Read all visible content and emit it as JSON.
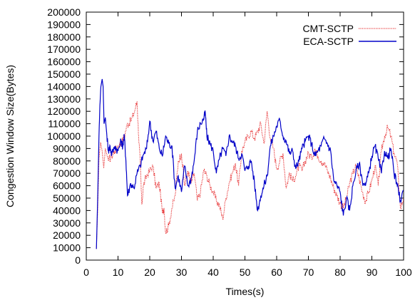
{
  "chart_data": {
    "type": "line",
    "title": "",
    "xlabel": "Times(s)",
    "ylabel": "Congestion Window Size(Bytes)",
    "xlim": [
      0,
      100
    ],
    "ylim": [
      0,
      200000
    ],
    "xticks": [
      0,
      10,
      20,
      30,
      40,
      50,
      60,
      70,
      80,
      90,
      100
    ],
    "yticks": [
      0,
      10000,
      20000,
      30000,
      40000,
      50000,
      60000,
      70000,
      80000,
      90000,
      100000,
      110000,
      120000,
      130000,
      140000,
      150000,
      160000,
      170000,
      180000,
      190000,
      200000
    ],
    "legend_position": "top-right",
    "grid": false,
    "series": [
      {
        "name": "CMT-SCTP",
        "color": "#e41a1c",
        "style": "dotted",
        "points": [
          [
            3.2,
            9000
          ],
          [
            3.6,
            40000
          ],
          [
            4.0,
            82000
          ],
          [
            4.5,
            95000
          ],
          [
            5.0,
            88000
          ],
          [
            5.5,
            74000
          ],
          [
            6.0,
            90000
          ],
          [
            7.0,
            80000
          ],
          [
            8.0,
            84000
          ],
          [
            9.0,
            88000
          ],
          [
            10.0,
            92000
          ],
          [
            11.0,
            94000
          ],
          [
            12.0,
            100000
          ],
          [
            13.0,
            110000
          ],
          [
            14.0,
            112000
          ],
          [
            15.0,
            118000
          ],
          [
            16.0,
            128000
          ],
          [
            16.5,
            100000
          ],
          [
            17.0,
            78000
          ],
          [
            17.5,
            45000
          ],
          [
            18.0,
            60000
          ],
          [
            19.0,
            68000
          ],
          [
            20.0,
            72000
          ],
          [
            21.0,
            76000
          ],
          [
            22.0,
            58000
          ],
          [
            23.0,
            62000
          ],
          [
            24.0,
            38000
          ],
          [
            24.5,
            42000
          ],
          [
            25.0,
            22000
          ],
          [
            26.0,
            28000
          ],
          [
            27.0,
            42000
          ],
          [
            28.0,
            52000
          ],
          [
            29.0,
            80000
          ],
          [
            30.0,
            86000
          ],
          [
            31.0,
            60000
          ],
          [
            32.0,
            72000
          ],
          [
            33.0,
            62000
          ],
          [
            34.0,
            70000
          ],
          [
            35.0,
            48000
          ],
          [
            36.0,
            55000
          ],
          [
            37.0,
            72000
          ],
          [
            38.0,
            68000
          ],
          [
            39.0,
            60000
          ],
          [
            40.0,
            55000
          ],
          [
            41.0,
            48000
          ],
          [
            42.0,
            44000
          ],
          [
            43.0,
            33000
          ],
          [
            44.0,
            50000
          ],
          [
            45.0,
            62000
          ],
          [
            46.0,
            70000
          ],
          [
            47.0,
            78000
          ],
          [
            48.0,
            60000
          ],
          [
            49.0,
            88000
          ],
          [
            50.0,
            95000
          ],
          [
            51.0,
            100000
          ],
          [
            52.0,
            104000
          ],
          [
            53.0,
            98000
          ],
          [
            54.0,
            104000
          ],
          [
            55.0,
            110000
          ],
          [
            56.0,
            94000
          ],
          [
            57.0,
            120000
          ],
          [
            58.0,
            98000
          ],
          [
            59.0,
            90000
          ],
          [
            60.0,
            74000
          ],
          [
            61.0,
            80000
          ],
          [
            62.0,
            86000
          ],
          [
            63.0,
            58000
          ],
          [
            64.0,
            70000
          ],
          [
            65.0,
            64000
          ],
          [
            66.0,
            68000
          ],
          [
            67.0,
            76000
          ],
          [
            68.0,
            72000
          ],
          [
            69.0,
            80000
          ],
          [
            70.0,
            86000
          ],
          [
            71.0,
            82000
          ],
          [
            72.0,
            90000
          ],
          [
            73.0,
            84000
          ],
          [
            74.0,
            80000
          ],
          [
            75.0,
            78000
          ],
          [
            76.0,
            72000
          ],
          [
            77.0,
            66000
          ],
          [
            78.0,
            58000
          ],
          [
            79.0,
            52000
          ],
          [
            80.0,
            46000
          ],
          [
            81.0,
            42000
          ],
          [
            82.0,
            50000
          ],
          [
            83.0,
            62000
          ],
          [
            84.0,
            70000
          ],
          [
            85.0,
            76000
          ],
          [
            86.0,
            66000
          ],
          [
            87.0,
            55000
          ],
          [
            88.0,
            47000
          ],
          [
            89.0,
            55000
          ],
          [
            90.0,
            64000
          ],
          [
            91.0,
            76000
          ],
          [
            92.0,
            60000
          ],
          [
            93.0,
            88000
          ],
          [
            94.0,
            100000
          ],
          [
            95.0,
            107000
          ],
          [
            96.0,
            100000
          ],
          [
            97.0,
            86000
          ],
          [
            98.0,
            78000
          ],
          [
            99.0,
            42000
          ],
          [
            100.0,
            50000
          ]
        ]
      },
      {
        "name": "ECA-SCTP",
        "color": "#0000c8",
        "style": "solid",
        "points": [
          [
            3.2,
            9000
          ],
          [
            3.6,
            50000
          ],
          [
            4.0,
            100000
          ],
          [
            4.3,
            125000
          ],
          [
            4.6,
            140000
          ],
          [
            5.0,
            146000
          ],
          [
            5.3,
            140000
          ],
          [
            5.6,
            110000
          ],
          [
            6.0,
            115000
          ],
          [
            6.5,
            100000
          ],
          [
            7.0,
            88000
          ],
          [
            7.5,
            92000
          ],
          [
            8.0,
            85000
          ],
          [
            9.0,
            92000
          ],
          [
            10.0,
            88000
          ],
          [
            11.0,
            96000
          ],
          [
            11.5,
            92000
          ],
          [
            12.0,
            100000
          ],
          [
            12.5,
            80000
          ],
          [
            13.0,
            52000
          ],
          [
            14.0,
            62000
          ],
          [
            15.0,
            58000
          ],
          [
            16.0,
            70000
          ],
          [
            17.0,
            76000
          ],
          [
            18.0,
            85000
          ],
          [
            19.0,
            90000
          ],
          [
            20.0,
            112000
          ],
          [
            21.0,
            96000
          ],
          [
            22.0,
            104000
          ],
          [
            23.0,
            90000
          ],
          [
            24.0,
            84000
          ],
          [
            25.0,
            100000
          ],
          [
            26.0,
            94000
          ],
          [
            27.0,
            92000
          ],
          [
            28.0,
            58000
          ],
          [
            29.0,
            68000
          ],
          [
            30.0,
            55000
          ],
          [
            31.0,
            76000
          ],
          [
            32.0,
            60000
          ],
          [
            33.0,
            65000
          ],
          [
            34.0,
            80000
          ],
          [
            35.0,
            104000
          ],
          [
            36.0,
            110000
          ],
          [
            37.0,
            114000
          ],
          [
            37.5,
            119000
          ],
          [
            38.0,
            100000
          ],
          [
            39.0,
            94000
          ],
          [
            40.0,
            88000
          ],
          [
            41.0,
            70000
          ],
          [
            42.0,
            82000
          ],
          [
            43.0,
            90000
          ],
          [
            44.0,
            84000
          ],
          [
            45.0,
            100000
          ],
          [
            46.0,
            96000
          ],
          [
            47.0,
            92000
          ],
          [
            48.0,
            82000
          ],
          [
            49.0,
            86000
          ],
          [
            50.0,
            72000
          ],
          [
            51.0,
            76000
          ],
          [
            52.0,
            80000
          ],
          [
            53.0,
            62000
          ],
          [
            54.0,
            40000
          ],
          [
            55.0,
            52000
          ],
          [
            56.0,
            60000
          ],
          [
            57.0,
            68000
          ],
          [
            58.0,
            92000
          ],
          [
            59.0,
            100000
          ],
          [
            60.0,
            108000
          ],
          [
            61.0,
            113000
          ],
          [
            62.0,
            100000
          ],
          [
            63.0,
            96000
          ],
          [
            64.0,
            86000
          ],
          [
            65.0,
            88000
          ],
          [
            66.0,
            74000
          ],
          [
            67.0,
            80000
          ],
          [
            68.0,
            90000
          ],
          [
            69.0,
            96000
          ],
          [
            70.0,
            100000
          ],
          [
            71.0,
            94000
          ],
          [
            72.0,
            84000
          ],
          [
            73.0,
            88000
          ],
          [
            74.0,
            92000
          ],
          [
            75.0,
            98000
          ],
          [
            76.0,
            94000
          ],
          [
            77.0,
            88000
          ],
          [
            78.0,
            64000
          ],
          [
            79.0,
            60000
          ],
          [
            80.0,
            55000
          ],
          [
            81.0,
            36000
          ],
          [
            82.0,
            50000
          ],
          [
            83.0,
            40000
          ],
          [
            84.0,
            60000
          ],
          [
            85.0,
            72000
          ],
          [
            86.0,
            78000
          ],
          [
            87.0,
            64000
          ],
          [
            88.0,
            60000
          ],
          [
            89.0,
            70000
          ],
          [
            90.0,
            84000
          ],
          [
            91.0,
            92000
          ],
          [
            92.0,
            82000
          ],
          [
            93.0,
            70000
          ],
          [
            94.0,
            88000
          ],
          [
            95.0,
            82000
          ],
          [
            96.0,
            90000
          ],
          [
            97.0,
            70000
          ],
          [
            98.0,
            60000
          ],
          [
            99.0,
            48000
          ],
          [
            100.0,
            56000
          ]
        ]
      }
    ]
  }
}
